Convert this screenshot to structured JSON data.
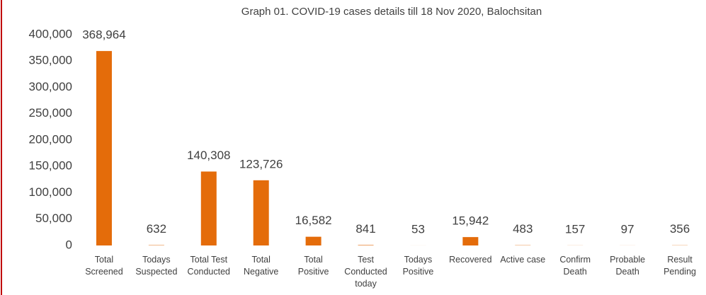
{
  "chart_data": {
    "type": "bar",
    "title": "Graph 01. COVID-19 cases details till 18 Nov 2020, Balochsitan",
    "categories": [
      "Total Screened",
      "Todays Suspected",
      "Total Test Conducted",
      "Total Negative",
      "Total Positive",
      "Test Conducted today",
      "Todays Positive",
      "Recovered",
      "Active case",
      "Confirm Death",
      "Probable Death",
      "Result Pending"
    ],
    "values": [
      368964,
      632,
      140308,
      123726,
      16582,
      841,
      53,
      15942,
      483,
      157,
      97,
      356
    ],
    "value_labels": [
      "368,964",
      "632",
      "140,308",
      "123,726",
      "16,582",
      "841",
      "53",
      "15,942",
      "483",
      "157",
      "97",
      "356"
    ],
    "color": "#e46c0a",
    "ylim": [
      0,
      400000
    ],
    "yticks": [
      0,
      {
        "value": 50000,
        "label": "50,000"
      },
      {
        "value": 100000,
        "label": "100,000"
      },
      {
        "value": 150000,
        "label": "150,000"
      },
      {
        "value": 200000,
        "label": "200,000"
      },
      {
        "value": 250000,
        "label": "250,000"
      },
      {
        "value": 300000,
        "label": "300,000"
      },
      {
        "value": 350000,
        "label": "350,000"
      },
      {
        "value": 400000,
        "label": "400,000"
      }
    ],
    "grid": false
  }
}
